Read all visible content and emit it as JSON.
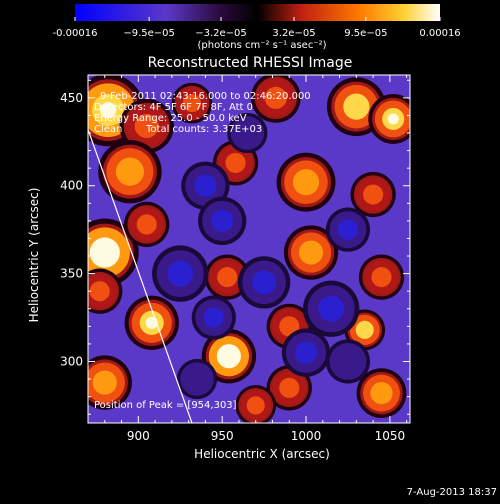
{
  "colorbar": {
    "ticks": [
      "-0.00016",
      "−9.5e−05",
      "−3.2e−05",
      "3.2e−05",
      "9.5e−05",
      "0.00016"
    ],
    "tick_values": [
      -0.00016,
      -9.5e-05,
      -3.2e-05,
      3.2e-05,
      9.5e-05,
      0.00016
    ],
    "units_text": "(photons cm⁻² s⁻¹ asec⁻²)"
  },
  "chart_data": {
    "type": "heatmap",
    "title": "Reconstructed RHESSI Image",
    "xlabel": "Heliocentric X (arcsec)",
    "ylabel": "Heliocentric Y (arcsec)",
    "xlim": [
      870,
      1062
    ],
    "ylim": [
      265,
      463
    ],
    "x_ticks": [
      "900",
      "950",
      "1000",
      "1050"
    ],
    "x_tick_values": [
      900,
      950,
      1000,
      1050
    ],
    "y_ticks": [
      "300",
      "350",
      "400",
      "450"
    ],
    "y_tick_values": [
      300,
      350,
      400,
      450
    ],
    "value_range": [
      -0.00016,
      0.00016
    ],
    "limb_line": [
      [
        870,
        432
      ],
      [
        932,
        265
      ]
    ],
    "peak_position": [
      954,
      303
    ],
    "annotations": {
      "time_range": "9-Feb-2011 02:43:16.000 to 02:46:20.000",
      "detectors": "Detectors: 4F 5F 6F 7F 8F, Att 0",
      "energy_range": "Energy Range: 25.0 - 50.0 keV",
      "clean": "Clean",
      "total_counts": "Total counts: 3.37E+03",
      "peak": "Position of Peak = [954,303]"
    },
    "blobs": [
      {
        "x": 882,
        "y": 443,
        "r": 16,
        "v": 0.9
      },
      {
        "x": 905,
        "y": 434,
        "r": 12,
        "v": 0.6
      },
      {
        "x": 932,
        "y": 447,
        "r": 9,
        "v": 0.5
      },
      {
        "x": 982,
        "y": 450,
        "r": 11,
        "v": 0.55
      },
      {
        "x": 1030,
        "y": 445,
        "r": 13,
        "v": 0.8
      },
      {
        "x": 1052,
        "y": 438,
        "r": 11,
        "v": 0.85
      },
      {
        "x": 895,
        "y": 408,
        "r": 14,
        "v": 0.7
      },
      {
        "x": 958,
        "y": 413,
        "r": 10,
        "v": 0.5
      },
      {
        "x": 1000,
        "y": 402,
        "r": 13,
        "v": 0.7
      },
      {
        "x": 1040,
        "y": 395,
        "r": 10,
        "v": 0.6
      },
      {
        "x": 880,
        "y": 362,
        "r": 15,
        "v": 0.95
      },
      {
        "x": 905,
        "y": 378,
        "r": 10,
        "v": 0.6
      },
      {
        "x": 953,
        "y": 348,
        "r": 10,
        "v": 0.5
      },
      {
        "x": 1003,
        "y": 362,
        "r": 12,
        "v": 0.7
      },
      {
        "x": 1045,
        "y": 348,
        "r": 10,
        "v": 0.6
      },
      {
        "x": 877,
        "y": 340,
        "r": 10,
        "v": 0.6
      },
      {
        "x": 908,
        "y": 322,
        "r": 12,
        "v": 0.85
      },
      {
        "x": 990,
        "y": 320,
        "r": 10,
        "v": 0.55
      },
      {
        "x": 1035,
        "y": 318,
        "r": 9,
        "v": 0.8
      },
      {
        "x": 954,
        "y": 303,
        "r": 12,
        "v": 1.0
      },
      {
        "x": 880,
        "y": 288,
        "r": 12,
        "v": 0.7
      },
      {
        "x": 990,
        "y": 285,
        "r": 10,
        "v": 0.6
      },
      {
        "x": 1045,
        "y": 282,
        "r": 11,
        "v": 0.75
      },
      {
        "x": 970,
        "y": 275,
        "r": 9,
        "v": 0.5
      },
      {
        "x": 940,
        "y": 400,
        "r": 12,
        "v": -0.7
      },
      {
        "x": 950,
        "y": 380,
        "r": 12,
        "v": -0.55
      },
      {
        "x": 925,
        "y": 350,
        "r": 14,
        "v": -0.7
      },
      {
        "x": 975,
        "y": 345,
        "r": 13,
        "v": -0.6
      },
      {
        "x": 1015,
        "y": 330,
        "r": 14,
        "v": -0.65
      },
      {
        "x": 1000,
        "y": 305,
        "r": 12,
        "v": -0.5
      },
      {
        "x": 945,
        "y": 325,
        "r": 11,
        "v": -0.6
      },
      {
        "x": 1025,
        "y": 375,
        "r": 11,
        "v": -0.5
      },
      {
        "x": 965,
        "y": 430,
        "r": 10,
        "v": -0.45
      },
      {
        "x": 935,
        "y": 290,
        "r": 10,
        "v": -0.4
      },
      {
        "x": 1025,
        "y": 300,
        "r": 11,
        "v": -0.45
      }
    ]
  },
  "footer": {
    "date": "7-Aug-2013 18:37"
  }
}
